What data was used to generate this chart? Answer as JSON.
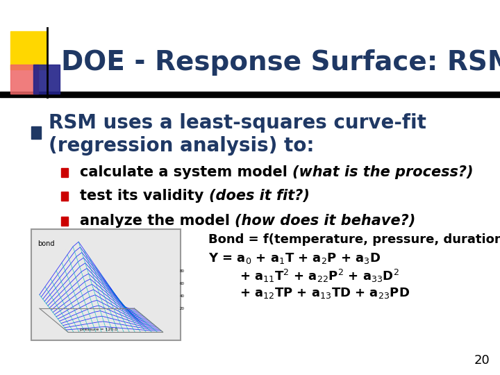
{
  "background_color": "#ffffff",
  "title": "DOE - Response Surface: RSM",
  "title_color": "#1F3864",
  "title_fontsize": 28,
  "header_bar_color": "#000000",
  "square_yellow": {
    "color": "#FFD700"
  },
  "square_red": {
    "color": "#EE6666"
  },
  "square_blue": {
    "color": "#222288"
  },
  "bullet1_color": "#1F3864",
  "bullet1_text_line1": "RSM uses a least-squares curve-fit",
  "bullet1_text_line2": "(regression analysis) to:",
  "bullet1_fontsize": 20,
  "sub_bullet_color": "#CC0000",
  "sub_bullets": [
    {
      "normal": "calculate a system model ",
      "italic": "(what is the process?)"
    },
    {
      "normal": "test its validity ",
      "italic": "(does it fit?)"
    },
    {
      "normal": "analyze the model ",
      "italic": "(how does it behave?)"
    }
  ],
  "sub_bullet_fontsize": 15,
  "formula_fontsize": 13,
  "formula_color": "#000000",
  "page_number": "20",
  "page_number_fontsize": 13
}
